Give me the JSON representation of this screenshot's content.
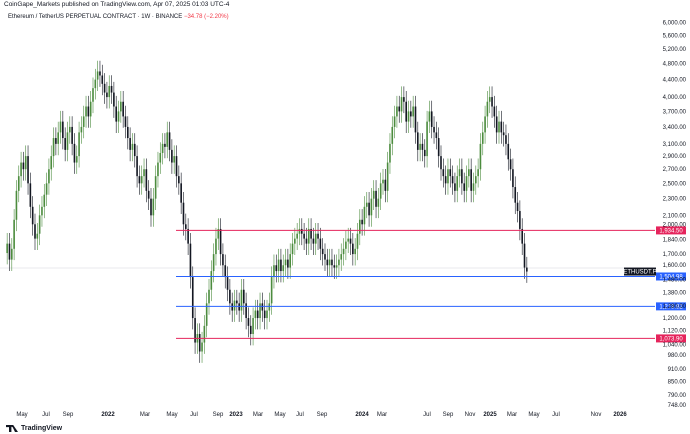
{
  "header": {
    "published": "CoinGape_Markets published on TradingView.com, Apr 07, 2025 01:03 UTC-4",
    "symbol": "Ethereum / TetherUS PERPETUAL CONTRACT · 1W · BINANCE",
    "change": "−34.78 (−2.20%)"
  },
  "footer": {
    "brand": "TradingView"
  },
  "colors": {
    "up": "#4c8c3e",
    "down": "#131722",
    "red_level": "#e5245c",
    "blue_level": "#2962ff",
    "ticker_tag": "#131722"
  },
  "chart_data": {
    "type": "candlestick",
    "scale": "log",
    "ylim": [
      735,
      6500
    ],
    "y_ticks": [
      "6,000.00",
      "5,600.00",
      "5,200.00",
      "4,800.00",
      "4,400.00",
      "4,000.00",
      "3,700.00",
      "3,400.00",
      "3,100.00",
      "2,900.00",
      "2,700.00",
      "2,500.00",
      "2,300.00",
      "2,100.00",
      "2,000.00",
      "1,840.00",
      "1,700.00",
      "1,600.00",
      "1,480.00",
      "1,380.00",
      "1,280.00",
      "1,200.00",
      "1,120.00",
      "1,040.00",
      "980.00",
      "910.00",
      "850.00",
      "790.00",
      "748.00"
    ],
    "x_ticks": [
      {
        "label": "May",
        "bold": false
      },
      {
        "label": "Jul",
        "bold": false
      },
      {
        "label": "Sep",
        "bold": false
      },
      {
        "label": "2022",
        "bold": true
      },
      {
        "label": "Mar",
        "bold": false
      },
      {
        "label": "May",
        "bold": false
      },
      {
        "label": "Jul",
        "bold": false
      },
      {
        "label": "Sep",
        "bold": false
      },
      {
        "label": "2023",
        "bold": true
      },
      {
        "label": "Mar",
        "bold": false
      },
      {
        "label": "May",
        "bold": false
      },
      {
        "label": "Jul",
        "bold": false
      },
      {
        "label": "Sep",
        "bold": false
      },
      {
        "label": "2024",
        "bold": true
      },
      {
        "label": "Mar",
        "bold": false
      },
      {
        "label": "Jul",
        "bold": false
      },
      {
        "label": "Sep",
        "bold": false
      },
      {
        "label": "Nov",
        "bold": false
      },
      {
        "label": "2025",
        "bold": true
      },
      {
        "label": "Mar",
        "bold": false
      },
      {
        "label": "May",
        "bold": false
      },
      {
        "label": "Jul",
        "bold": false
      },
      {
        "label": "Nov",
        "bold": false
      },
      {
        "label": "2026",
        "bold": true
      }
    ],
    "levels": [
      {
        "label": "1,934.50",
        "value": 1934.5,
        "color": "red"
      },
      {
        "label": "1,504.98",
        "value": 1504.98,
        "color": "blue"
      },
      {
        "label": "1,278.82",
        "value": 1278.82,
        "color": "blue"
      },
      {
        "label": "1,073.90",
        "value": 1073.9,
        "color": "red"
      }
    ],
    "current": {
      "label": "ETHUSDT.P",
      "value": 1546
    },
    "series": [
      {
        "name": "ETHUSDT.P",
        "close": [
          1800,
          1650,
          1750,
          2050,
          2400,
          2600,
          2800,
          2700,
          2900,
          2500,
          2200,
          2000,
          1850,
          1900,
          2100,
          2200,
          2350,
          2500,
          2700,
          2900,
          3200,
          3100,
          3300,
          3500,
          3200,
          3000,
          3300,
          3400,
          3100,
          2800,
          2900,
          3300,
          3400,
          3600,
          3800,
          3600,
          3900,
          4200,
          4400,
          4600,
          4500,
          4300,
          4100,
          4000,
          4250,
          4100,
          3800,
          3500,
          3700,
          3900,
          3600,
          3400,
          3200,
          3000,
          3100,
          2900,
          2600,
          2500,
          2600,
          2700,
          2400,
          2300,
          2100,
          2300,
          2600,
          2800,
          2950,
          3100,
          3050,
          3300,
          3000,
          2800,
          2900,
          2600,
          2500,
          2250,
          2000,
          1950,
          1800,
          1500,
          1200,
          1050,
          1100,
          1000,
          1050,
          1150,
          1300,
          1400,
          1550,
          1700,
          1850,
          1950,
          1700,
          1600,
          1500,
          1400,
          1300,
          1250,
          1320,
          1300,
          1250,
          1400,
          1300,
          1200,
          1150,
          1100,
          1200,
          1250,
          1200,
          1300,
          1250,
          1200,
          1250,
          1300,
          1500,
          1600,
          1550,
          1650,
          1550,
          1600,
          1650,
          1580,
          1700,
          1800,
          1850,
          1900,
          1950,
          1900,
          1850,
          1800,
          1950,
          1850,
          1800,
          1900,
          1850,
          1750,
          1700,
          1650,
          1600,
          1650,
          1600,
          1580,
          1600,
          1650,
          1700,
          1750,
          1820,
          1850,
          1800,
          1700,
          1750,
          1900,
          2050,
          2000,
          2200,
          2250,
          2100,
          2300,
          2400,
          2200,
          2300,
          2500,
          2550,
          2400,
          2800,
          3100,
          3400,
          3600,
          3800,
          3700,
          4000,
          3900,
          3500,
          3700,
          3600,
          3800,
          3300,
          3000,
          3100,
          3000,
          2900,
          3500,
          3700,
          3400,
          3300,
          3200,
          2900,
          2700,
          2600,
          2500,
          2700,
          2600,
          2500,
          2400,
          2600,
          2700,
          2500,
          2400,
          2600,
          2700,
          2400,
          2500,
          2600,
          2700,
          3100,
          3300,
          3600,
          3900,
          4000,
          3800,
          3600,
          3300,
          3500,
          3300,
          3250,
          3100,
          2850,
          2700,
          2450,
          2250,
          2150,
          1950,
          1800,
          1580,
          1546
        ]
      }
    ]
  }
}
